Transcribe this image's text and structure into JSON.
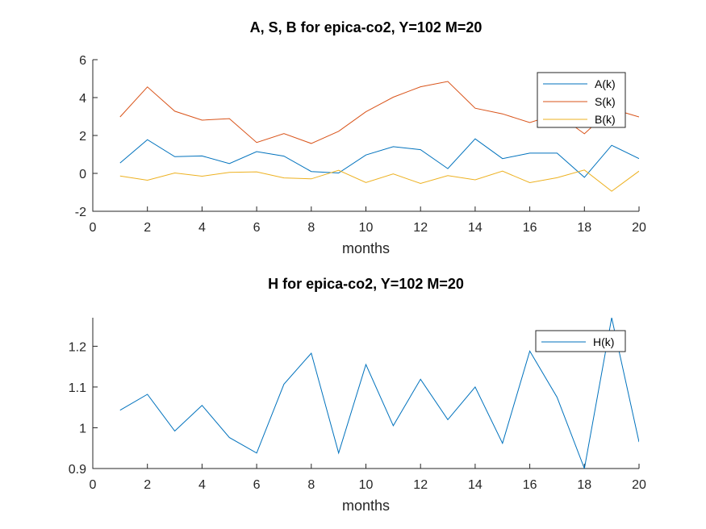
{
  "chart_data": [
    {
      "type": "line",
      "title": "A, S, B for epica-co2, Y=102 M=20",
      "xlabel": "months",
      "ylabel": "",
      "xlim": [
        0,
        20
      ],
      "ylim": [
        -2,
        6
      ],
      "xticks": [
        0,
        2,
        4,
        6,
        8,
        10,
        12,
        14,
        16,
        18,
        20
      ],
      "yticks": [
        -2,
        0,
        2,
        4,
        6
      ],
      "grid": false,
      "legend_position": "top-right",
      "x": [
        1,
        2,
        3,
        4,
        5,
        6,
        7,
        8,
        9,
        10,
        11,
        12,
        13,
        14,
        15,
        16,
        17,
        18,
        19,
        20
      ],
      "series": [
        {
          "name": "A(k)",
          "color": "#0072BD",
          "values": [
            0.55,
            1.78,
            0.88,
            0.92,
            0.52,
            1.15,
            0.91,
            0.1,
            0.02,
            0.97,
            1.41,
            1.25,
            0.25,
            1.82,
            0.78,
            1.07,
            1.07,
            -0.21,
            1.48,
            0.78
          ]
        },
        {
          "name": "S(k)",
          "color": "#D95319",
          "values": [
            2.98,
            4.56,
            3.28,
            2.81,
            2.89,
            1.63,
            2.1,
            1.58,
            2.22,
            3.25,
            4.02,
            4.57,
            4.85,
            3.44,
            3.14,
            2.68,
            3.13,
            2.09,
            3.41,
            2.98
          ]
        },
        {
          "name": "B(k)",
          "color": "#EDB120",
          "values": [
            -0.14,
            -0.36,
            0.02,
            -0.15,
            0.05,
            0.08,
            -0.24,
            -0.29,
            0.16,
            -0.48,
            -0.03,
            -0.53,
            -0.12,
            -0.34,
            0.12,
            -0.49,
            -0.23,
            0.18,
            -0.94,
            0.12
          ]
        }
      ]
    },
    {
      "type": "line",
      "title": "H for epica-co2, Y=102 M=20",
      "xlabel": "months",
      "ylabel": "",
      "xlim": [
        0,
        20
      ],
      "ylim": [
        0.9,
        1.27
      ],
      "xticks": [
        0,
        2,
        4,
        6,
        8,
        10,
        12,
        14,
        16,
        18,
        20
      ],
      "yticks": [
        0.9,
        1,
        1.1,
        1.2
      ],
      "ytick_labels": [
        "0.9",
        "1",
        "1.1",
        "1.2"
      ],
      "grid": false,
      "legend_position": "top-right",
      "x": [
        1,
        2,
        3,
        4,
        5,
        6,
        7,
        8,
        9,
        10,
        11,
        12,
        13,
        14,
        15,
        16,
        17,
        18,
        19,
        20
      ],
      "series": [
        {
          "name": "H(k)",
          "color": "#0072BD",
          "values": [
            1.043,
            1.082,
            0.992,
            1.055,
            0.976,
            0.938,
            1.107,
            1.183,
            0.938,
            1.155,
            1.005,
            1.119,
            1.02,
            1.1,
            0.962,
            1.188,
            1.075,
            0.9,
            1.27,
            0.965
          ]
        }
      ]
    }
  ]
}
